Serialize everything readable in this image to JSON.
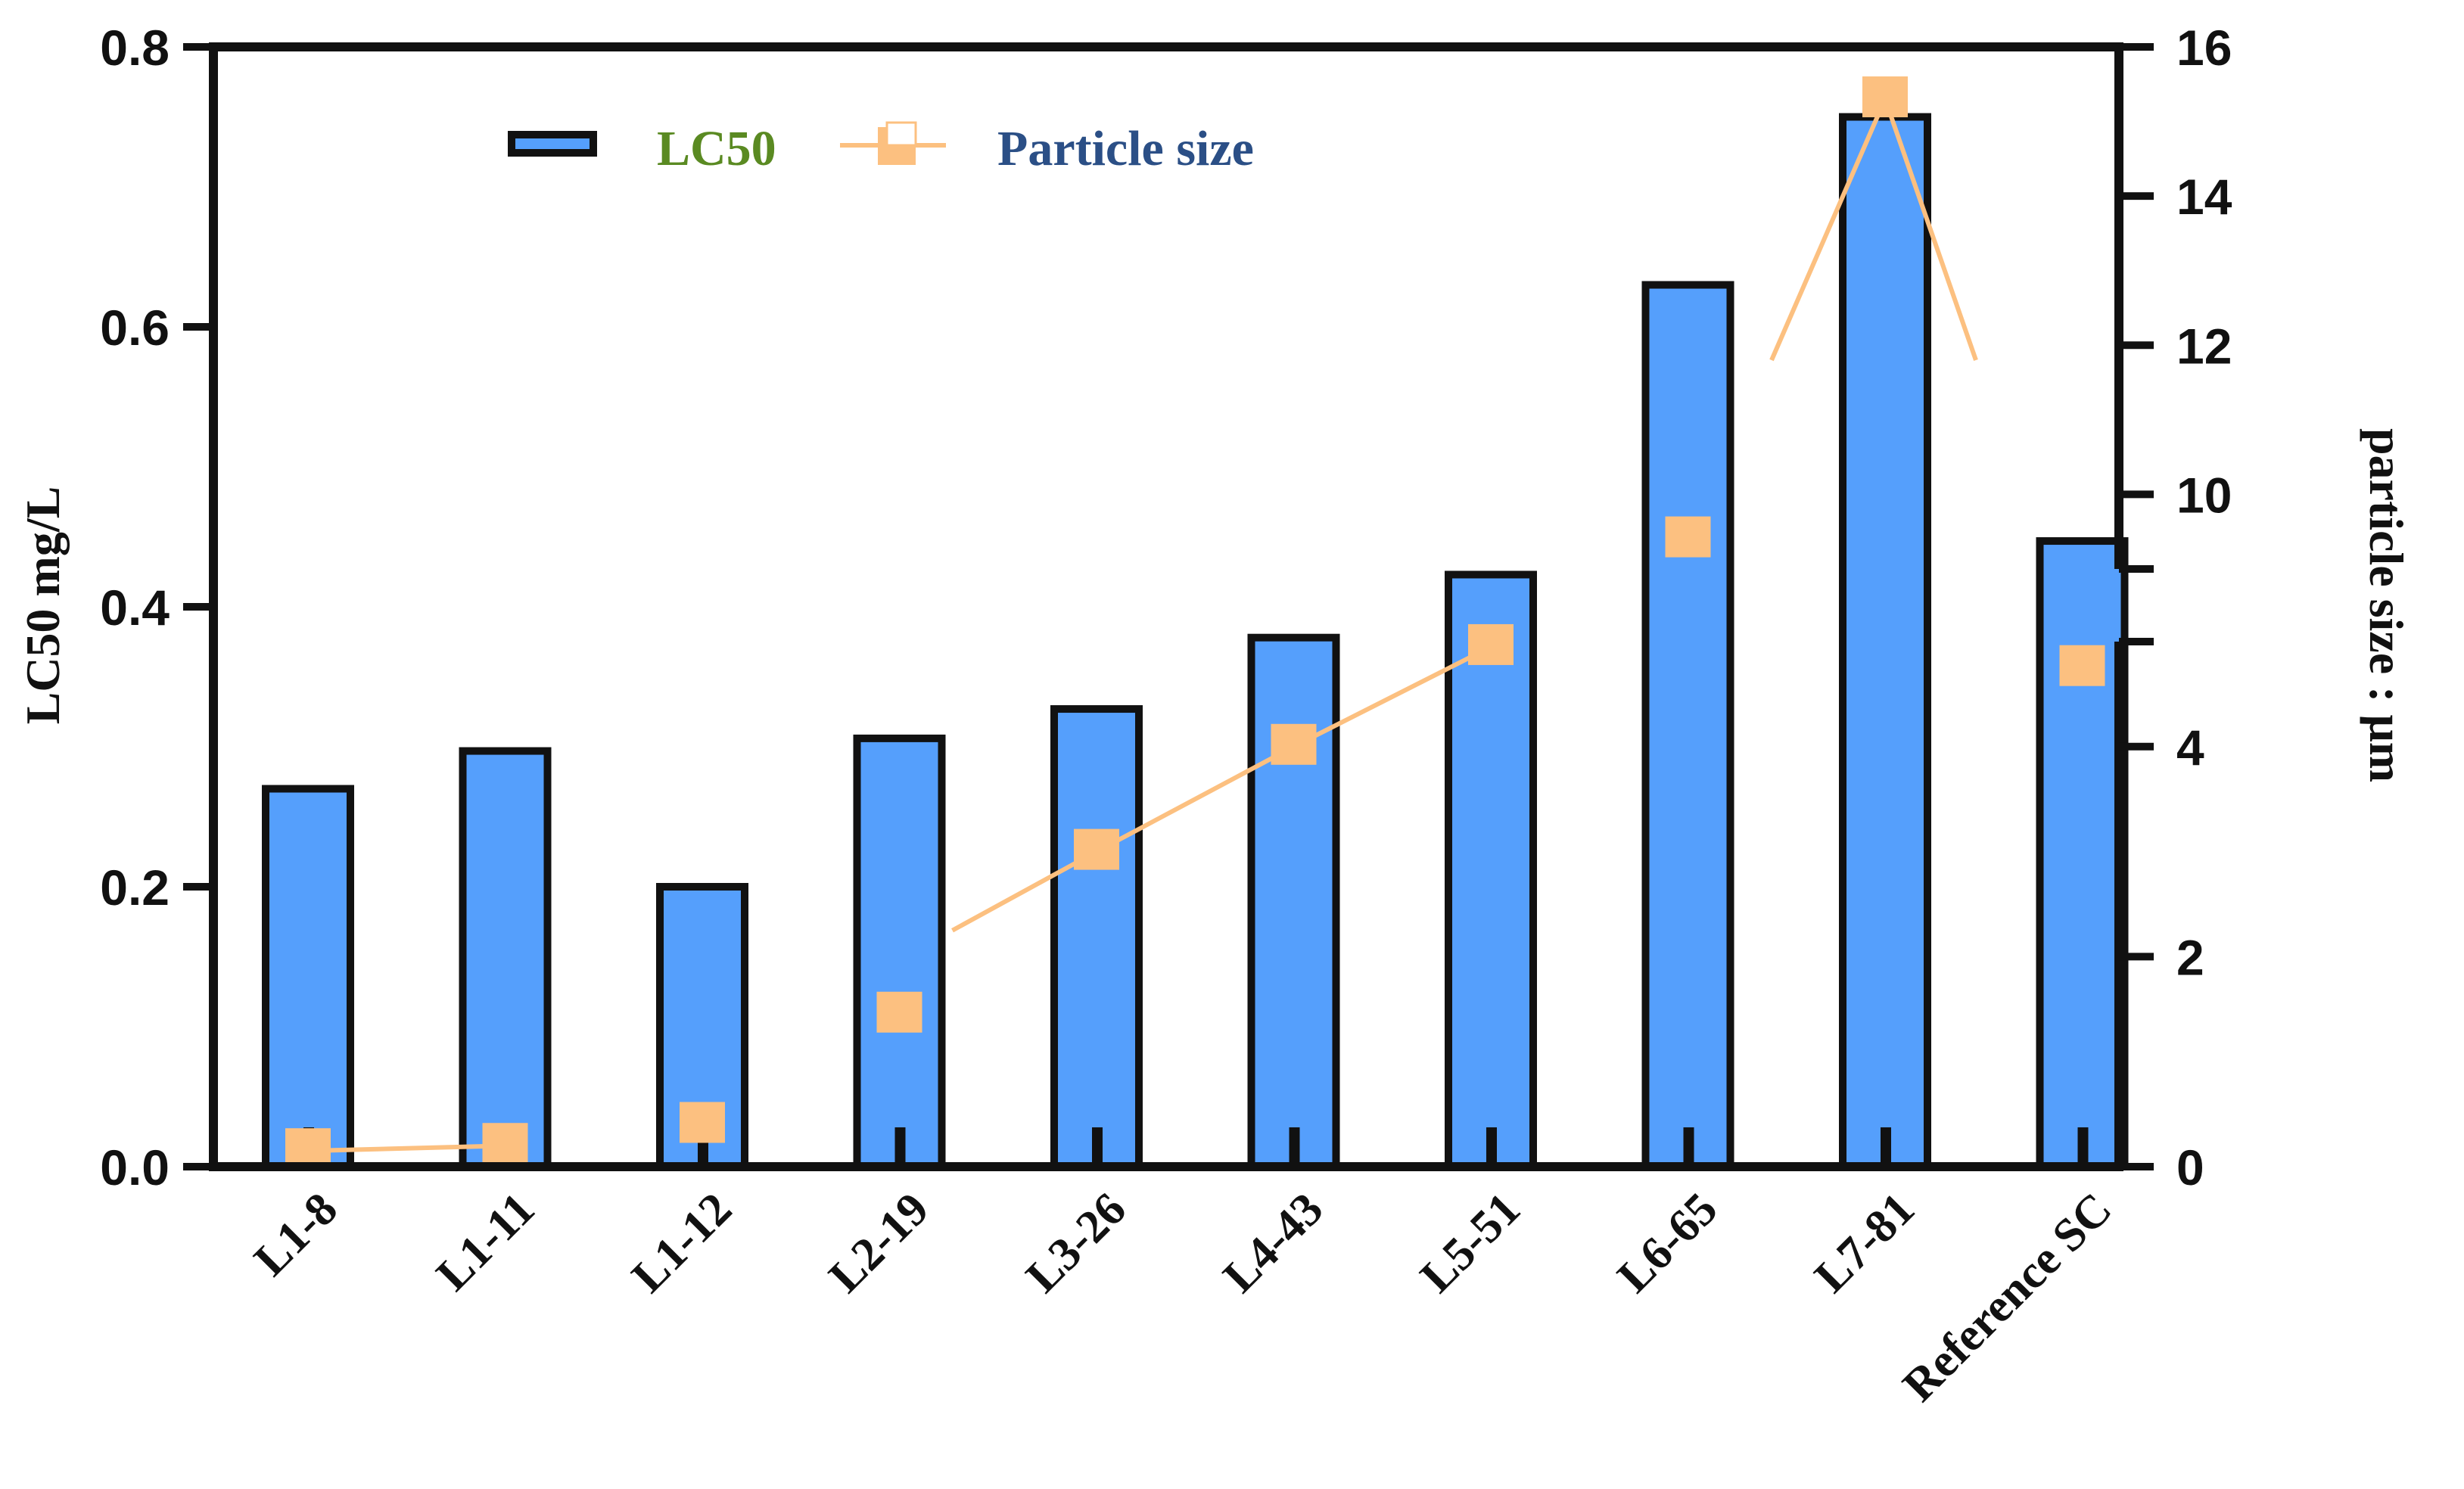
{
  "chart_data": {
    "type": "bar",
    "categories": [
      "L1-8",
      "L1-11",
      "L1-12",
      "L2-19",
      "L3-26",
      "L4-43",
      "L5-51",
      "L6-65",
      "L7-81",
      "Reference SC"
    ],
    "series": [
      {
        "name": "LC50",
        "axis": "left",
        "type": "bar",
        "values": [
          0.27,
          0.297,
          0.2,
          0.306,
          0.327,
          0.378,
          0.423,
          0.63,
          0.75,
          0.447
        ]
      },
      {
        "name": "Particle size",
        "axis": "right",
        "type": "line",
        "values": [
          0.15,
          0.2,
          0.4,
          1.45,
          3.0,
          4.0,
          4.95,
          9.4,
          15.3,
          4.75
        ]
      }
    ],
    "ylabel": "LC50 mg/L",
    "ylabel_right": "particle size : μm",
    "ylim": [
      0,
      0.8
    ],
    "yticks": [
      "0.0",
      "0.2",
      "0.4",
      "0.6",
      "0.8"
    ],
    "ylim_right_lower": [
      0,
      5
    ],
    "ylim_right_upper": [
      9,
      16
    ],
    "yticks_right": [
      "0",
      "2",
      "4",
      "10",
      "12",
      "14",
      "16"
    ],
    "legend_position": "top-left",
    "colors": {
      "bar_fill": "#559ffc",
      "bar_edge": "#111111",
      "line": "#fcc080",
      "legend_lc50_text": "#5a8a22",
      "legend_particle_text": "#2b4f86"
    },
    "grid": false
  }
}
